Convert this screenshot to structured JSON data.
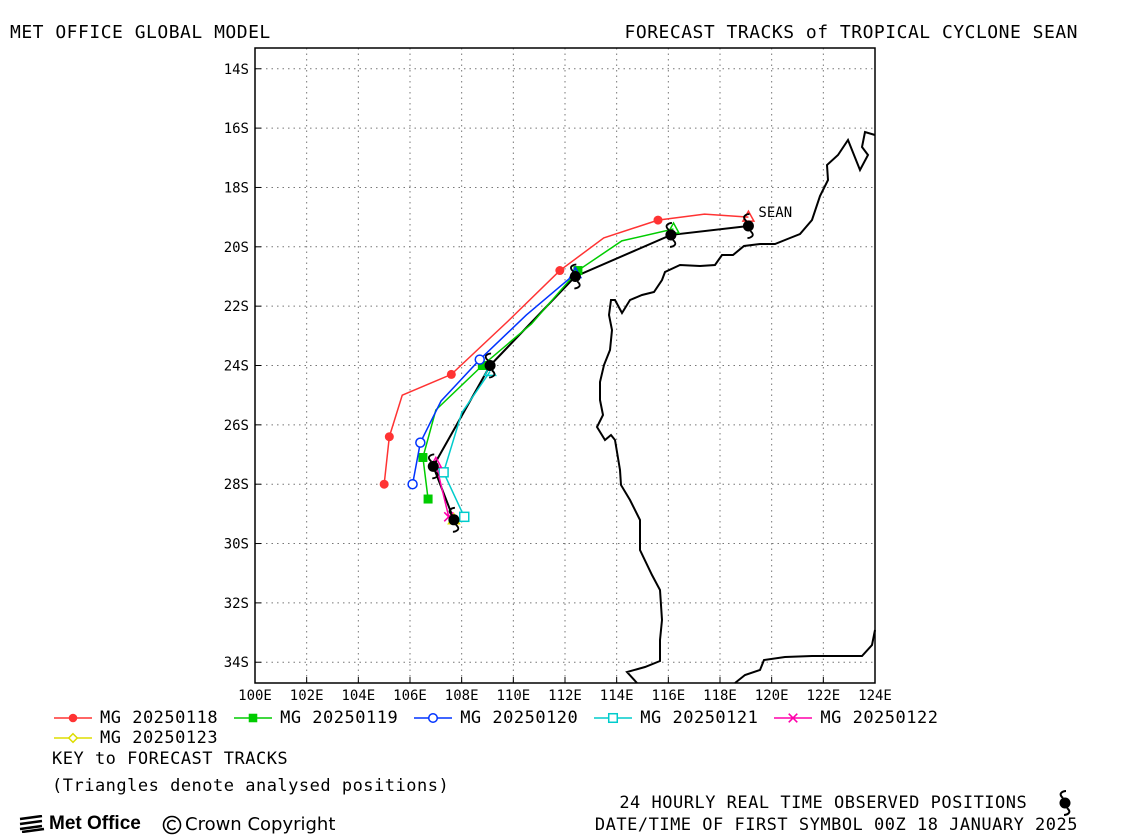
{
  "header": {
    "left_title": "MET OFFICE GLOBAL MODEL",
    "right_title": "FORECAST TRACKS of TROPICAL CYCLONE SEAN"
  },
  "chart_data": {
    "type": "map-track",
    "lon_range": [
      100,
      124
    ],
    "lat_range": [
      -34.7,
      -13.3
    ],
    "x_ticks": [
      "100E",
      "102E",
      "104E",
      "106E",
      "108E",
      "110E",
      "112E",
      "114E",
      "116E",
      "118E",
      "120E",
      "122E",
      "124E"
    ],
    "y_ticks": [
      "14S",
      "16S",
      "18S",
      "20S",
      "22S",
      "24S",
      "26S",
      "28S",
      "30S",
      "32S",
      "34S"
    ],
    "grid": true,
    "storm_label": "SEAN",
    "observed_track": [
      [
        119.1,
        -19.3
      ],
      [
        116.1,
        -19.6
      ],
      [
        112.4,
        -21.0
      ],
      [
        109.1,
        -24.0
      ],
      [
        106.9,
        -27.4
      ],
      [
        107.7,
        -29.2
      ]
    ],
    "series": [
      {
        "name": "MG 20250118",
        "color": "#ff3333",
        "marker": "filled-circle",
        "points": [
          [
            119.1,
            -19.0
          ],
          [
            117.4,
            -18.9
          ],
          [
            115.6,
            -19.1
          ],
          [
            113.5,
            -19.7
          ],
          [
            111.8,
            -20.8
          ],
          [
            109.8,
            -22.5
          ],
          [
            107.6,
            -24.3
          ],
          [
            105.7,
            -25.0
          ],
          [
            105.2,
            -26.4
          ],
          [
            105.0,
            -28.0
          ]
        ]
      },
      {
        "name": "MG 20250119",
        "color": "#00cc00",
        "marker": "filled-square",
        "points": [
          [
            116.2,
            -19.4
          ],
          [
            114.2,
            -19.8
          ],
          [
            112.5,
            -20.8
          ],
          [
            110.7,
            -22.6
          ],
          [
            108.8,
            -24.0
          ],
          [
            107.0,
            -25.5
          ],
          [
            106.5,
            -27.1
          ],
          [
            106.7,
            -28.5
          ]
        ]
      },
      {
        "name": "MG 20250120",
        "color": "#0033ff",
        "marker": "open-circle",
        "points": [
          [
            112.4,
            -20.9
          ],
          [
            110.5,
            -22.3
          ],
          [
            108.7,
            -23.8
          ],
          [
            107.2,
            -25.2
          ],
          [
            106.4,
            -26.6
          ],
          [
            106.1,
            -28.0
          ]
        ]
      },
      {
        "name": "MG 20250121",
        "color": "#00cccc",
        "marker": "open-square",
        "points": [
          [
            109.1,
            -24.2
          ],
          [
            108.0,
            -25.6
          ],
          [
            107.3,
            -27.6
          ],
          [
            108.1,
            -29.1
          ]
        ]
      },
      {
        "name": "MG 20250122",
        "color": "#ff00aa",
        "marker": "cross",
        "points": [
          [
            107.0,
            -27.3
          ],
          [
            107.5,
            -29.1
          ]
        ]
      },
      {
        "name": "MG 20250123",
        "color": "#dddd00",
        "marker": "open-diamond",
        "points": [
          [
            107.7,
            -29.2
          ]
        ]
      }
    ]
  },
  "key": {
    "title": "KEY to FORECAST TRACKS",
    "note": "(Triangles denote analysed positions)"
  },
  "footer": {
    "observed_note": "24 HOURLY REAL TIME OBSERVED POSITIONS",
    "datetime_note": "DATE/TIME OF FIRST SYMBOL 00Z 18 JANUARY 2025",
    "logo_text": "Met Office",
    "copyright": "Crown Copyright"
  }
}
